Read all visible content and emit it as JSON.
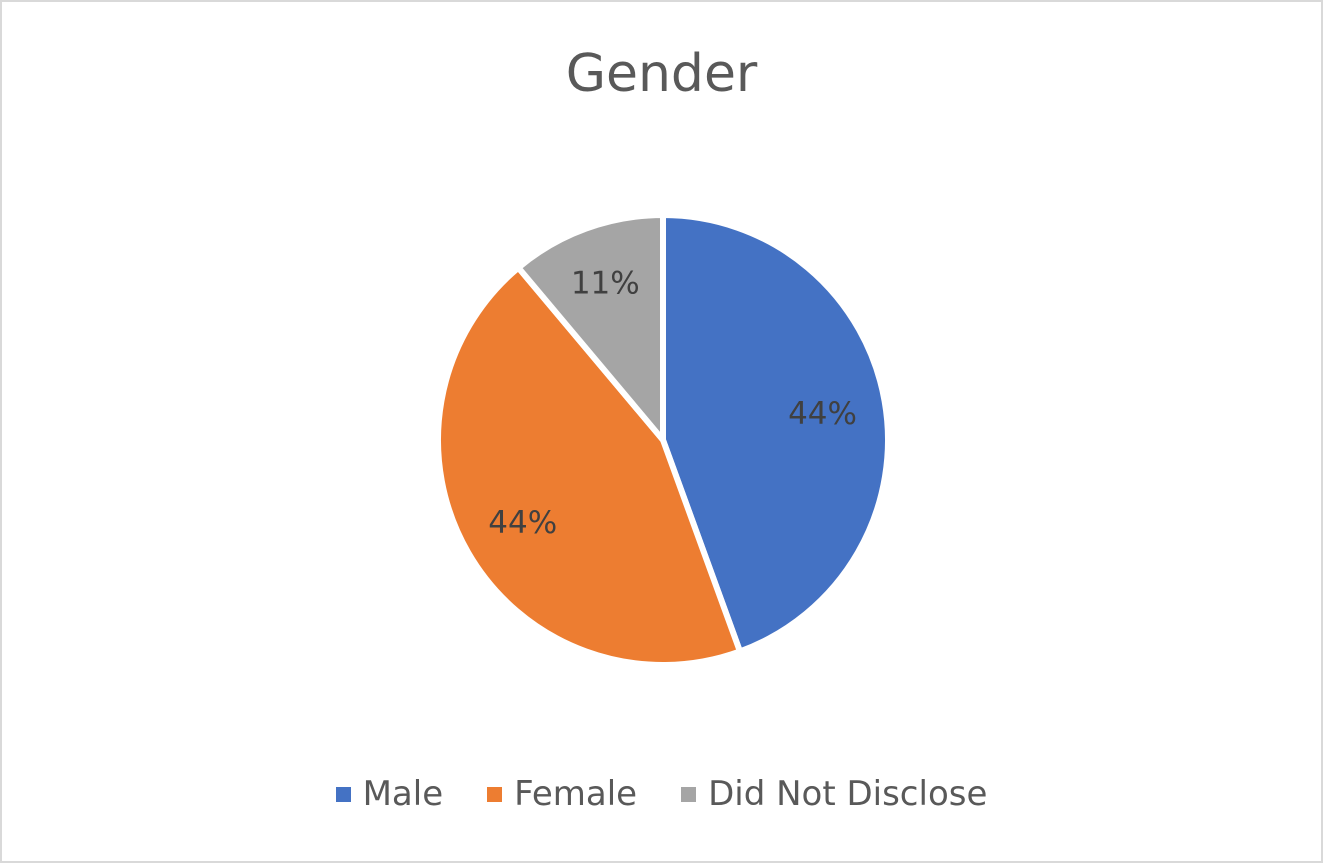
{
  "chart_data": {
    "type": "pie",
    "title": "Gender",
    "categories": [
      "Male",
      "Female",
      "Did Not Disclose"
    ],
    "values": [
      44.4,
      44.4,
      11.1
    ],
    "labels": [
      "44%",
      "44%",
      "11%"
    ],
    "colors": [
      "#4472c4",
      "#ed7d31",
      "#a5a5a5"
    ],
    "legend_position": "bottom",
    "start_angle_deg": 0,
    "direction": "clockwise"
  },
  "legend": {
    "items": [
      {
        "label": "Male",
        "color": "#4472c4"
      },
      {
        "label": "Female",
        "color": "#ed7d31"
      },
      {
        "label": "Did Not Disclose",
        "color": "#a5a5a5"
      }
    ]
  }
}
